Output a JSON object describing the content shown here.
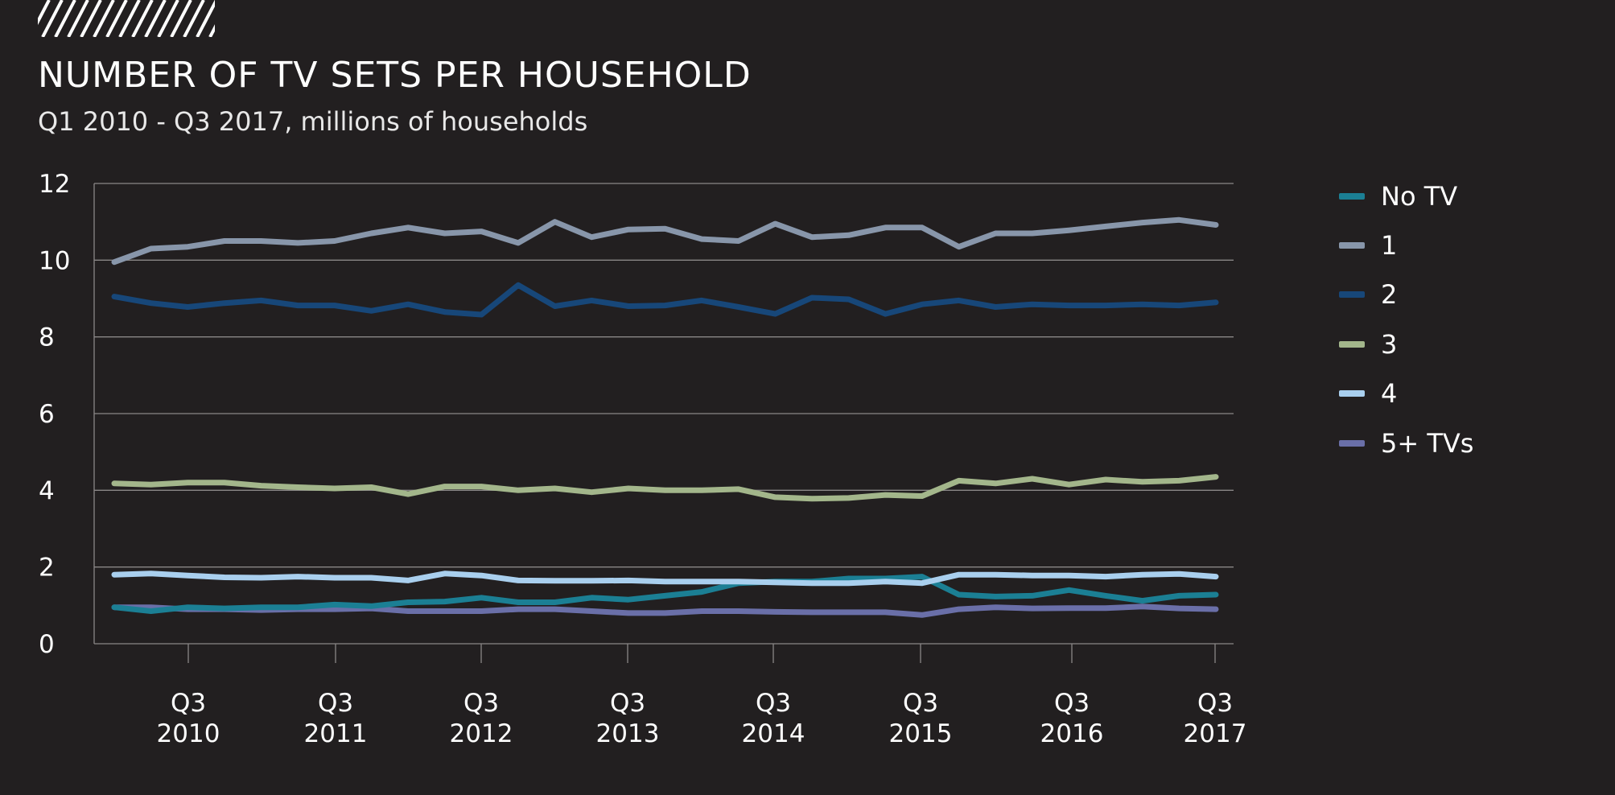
{
  "title": "NUMBER OF TV SETS PER HOUSEHOLD",
  "subtitle": "Q1 2010 - Q3 2017, millions of households",
  "colors": {
    "background": "#221f20",
    "gridline": "#8a8787",
    "text": "#ffffff"
  },
  "chart_data": {
    "type": "line",
    "title": "NUMBER OF TV SETS PER HOUSEHOLD",
    "subtitle": "Q1 2010 - Q3 2017, millions of households",
    "xlabel": "",
    "ylabel": "",
    "ylim": [
      0,
      12
    ],
    "yticks": [
      0,
      2,
      4,
      6,
      8,
      10,
      12
    ],
    "grid": true,
    "legend_position": "right",
    "x": [
      "Q1 2010",
      "Q2 2010",
      "Q3 2010",
      "Q4 2010",
      "Q1 2011",
      "Q2 2011",
      "Q3 2011",
      "Q4 2011",
      "Q1 2012",
      "Q2 2012",
      "Q3 2012",
      "Q4 2012",
      "Q1 2013",
      "Q2 2013",
      "Q3 2013",
      "Q4 2013",
      "Q1 2014",
      "Q2 2014",
      "Q3 2014",
      "Q4 2014",
      "Q1 2015",
      "Q2 2015",
      "Q3 2015",
      "Q4 2015",
      "Q1 2016",
      "Q2 2016",
      "Q3 2016",
      "Q4 2016",
      "Q1 2017",
      "Q2 2017",
      "Q3 2017"
    ],
    "xtick_labels": [
      {
        "index": 2,
        "line1": "Q3",
        "line2": "2010"
      },
      {
        "index": 6,
        "line1": "Q3",
        "line2": "2011"
      },
      {
        "index": 10,
        "line1": "Q3",
        "line2": "2012"
      },
      {
        "index": 14,
        "line1": "Q3",
        "line2": "2013"
      },
      {
        "index": 18,
        "line1": "Q3",
        "line2": "2014"
      },
      {
        "index": 22,
        "line1": "Q3",
        "line2": "2015"
      },
      {
        "index": 26,
        "line1": "Q3",
        "line2": "2016"
      },
      {
        "index": 30,
        "line1": "Q3",
        "line2": "2017"
      }
    ],
    "series": [
      {
        "name": "5+ TVs",
        "color": "#6a6fa8",
        "values": [
          0.95,
          0.95,
          0.9,
          0.9,
          0.88,
          0.9,
          0.9,
          0.92,
          0.85,
          0.85,
          0.85,
          0.9,
          0.9,
          0.85,
          0.8,
          0.8,
          0.85,
          0.85,
          0.83,
          0.82,
          0.82,
          0.82,
          0.75,
          0.9,
          0.95,
          0.92,
          0.93,
          0.93,
          0.97,
          0.92,
          0.9
        ]
      },
      {
        "name": "No TV",
        "color": "#1b7f94",
        "values": [
          0.95,
          0.85,
          0.95,
          0.92,
          0.95,
          0.95,
          1.02,
          0.98,
          1.08,
          1.1,
          1.2,
          1.08,
          1.08,
          1.2,
          1.15,
          1.25,
          1.35,
          1.58,
          1.62,
          1.62,
          1.7,
          1.7,
          1.75,
          1.28,
          1.23,
          1.25,
          1.4,
          1.25,
          1.12,
          1.25,
          1.28
        ]
      },
      {
        "name": "4",
        "color": "#a9cfee",
        "values": [
          1.8,
          1.83,
          1.78,
          1.73,
          1.72,
          1.75,
          1.72,
          1.72,
          1.65,
          1.83,
          1.78,
          1.65,
          1.64,
          1.64,
          1.65,
          1.62,
          1.62,
          1.62,
          1.6,
          1.58,
          1.58,
          1.62,
          1.58,
          1.8,
          1.8,
          1.78,
          1.78,
          1.75,
          1.8,
          1.82,
          1.75
        ]
      },
      {
        "name": "3",
        "color": "#a3b68b",
        "values": [
          4.18,
          4.15,
          4.2,
          4.2,
          4.12,
          4.08,
          4.05,
          4.08,
          3.9,
          4.1,
          4.1,
          4.0,
          4.05,
          3.95,
          4.05,
          4.0,
          4.0,
          4.03,
          3.82,
          3.78,
          3.8,
          3.88,
          3.85,
          4.25,
          4.18,
          4.3,
          4.15,
          4.28,
          4.22,
          4.25,
          4.35
        ]
      },
      {
        "name": "2",
        "color": "#174779",
        "values": [
          9.05,
          8.88,
          8.78,
          8.88,
          8.95,
          8.82,
          8.82,
          8.68,
          8.85,
          8.65,
          8.58,
          9.35,
          8.8,
          8.95,
          8.8,
          8.82,
          8.95,
          8.78,
          8.6,
          9.02,
          8.98,
          8.6,
          8.85,
          8.95,
          8.78,
          8.85,
          8.82,
          8.82,
          8.85,
          8.82,
          8.9
        ]
      },
      {
        "name": "1",
        "color": "#8896aa",
        "values": [
          9.95,
          10.3,
          10.35,
          10.5,
          10.5,
          10.45,
          10.5,
          10.7,
          10.85,
          10.7,
          10.75,
          10.45,
          11.0,
          10.6,
          10.8,
          10.82,
          10.55,
          10.5,
          10.95,
          10.6,
          10.65,
          10.85,
          10.85,
          10.35,
          10.7,
          10.7,
          10.78,
          10.88,
          10.98,
          11.05,
          10.92
        ]
      }
    ],
    "legend_order": [
      "No TV",
      "1",
      "2",
      "3",
      "4",
      "5+ TVs"
    ]
  }
}
